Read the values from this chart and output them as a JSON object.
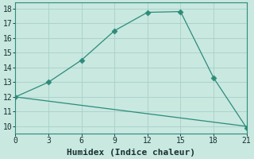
{
  "xlabel": "Humidex (Indice chaleur)",
  "line1_x": [
    0,
    3,
    6,
    9,
    12,
    15,
    18,
    21
  ],
  "line1_y": [
    12,
    13,
    14.5,
    16.5,
    17.75,
    17.8,
    13.3,
    9.9
  ],
  "line2_x": [
    0,
    21
  ],
  "line2_y": [
    12,
    10
  ],
  "line_color": "#2d8b7a",
  "bg_color": "#c8e8e0",
  "grid_color": "#aacfc8",
  "xlim": [
    0,
    21
  ],
  "ylim": [
    9.5,
    18.4
  ],
  "xticks": [
    0,
    3,
    6,
    9,
    12,
    15,
    18,
    21
  ],
  "yticks": [
    10,
    11,
    12,
    13,
    14,
    15,
    16,
    17,
    18
  ],
  "marker": "D",
  "marker_size": 3.5,
  "tick_fontsize": 7,
  "xlabel_fontsize": 8
}
